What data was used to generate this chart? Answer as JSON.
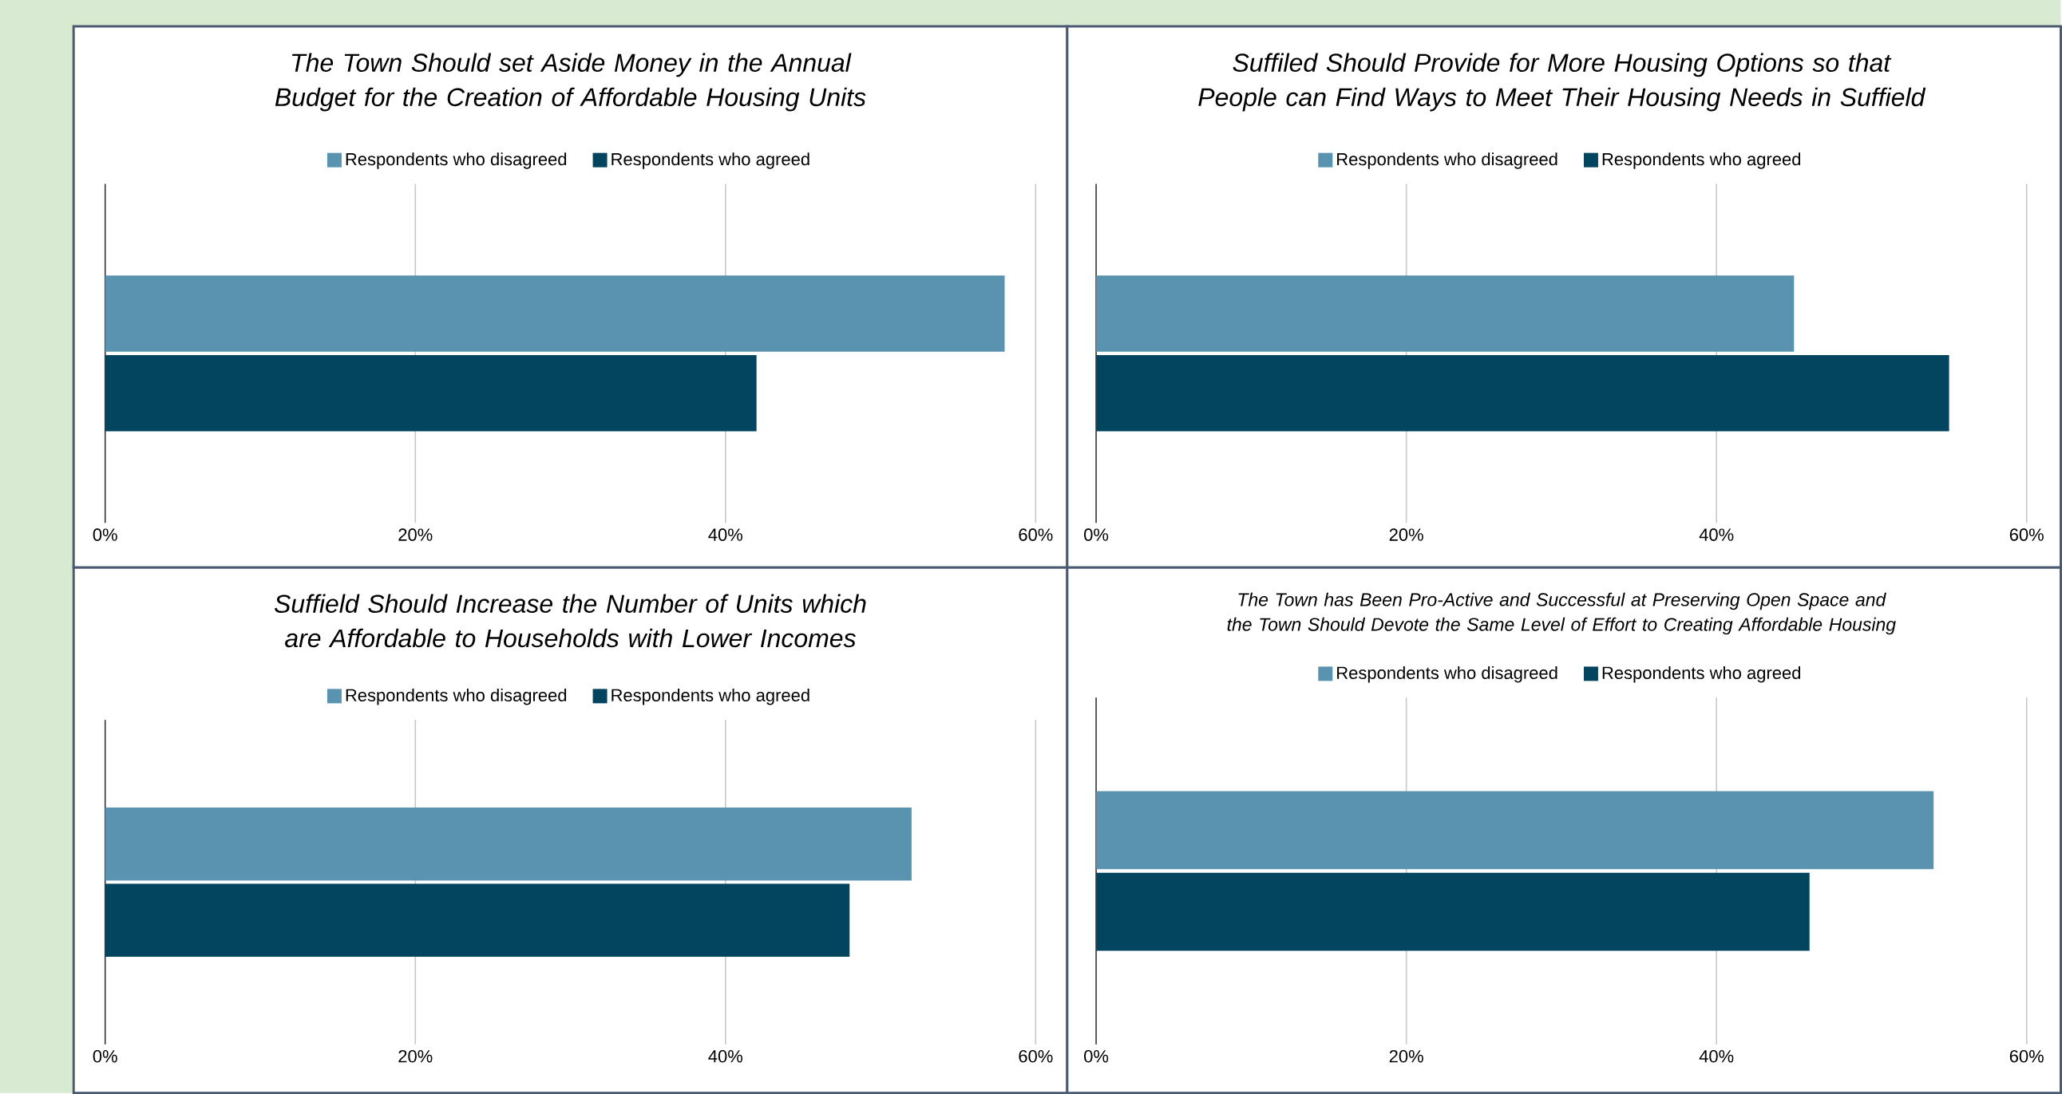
{
  "chart_data": [
    {
      "type": "bar",
      "orientation": "horizontal",
      "title": "The Town Should set Aside Money in the Annual Budget for the Creation of Affordable Housing Units",
      "categories": [
        null
      ],
      "series": [
        {
          "name": "Respondents who disagreed",
          "color": "#5a93b0",
          "values": [
            58
          ]
        },
        {
          "name": "Respondents who agreed",
          "color": "#03455f",
          "values": [
            42
          ]
        }
      ],
      "xlim": [
        0,
        60
      ],
      "xticks": [
        {
          "value": 0,
          "label": "0%"
        },
        {
          "value": 20,
          "label": "20%"
        },
        {
          "value": 40,
          "label": "40%"
        },
        {
          "value": 60,
          "label": "60%"
        }
      ],
      "grid": "x",
      "legend": "top",
      "tick_labels": "x"
    },
    {
      "type": "bar",
      "orientation": "horizontal",
      "title": "Suffiled Should Provide for More Housing Options so that People can Find Ways to Meet Their Housing Needs in Suffield",
      "categories": [
        null
      ],
      "series": [
        {
          "name": "Respondents who disagreed",
          "color": "#5a93b0",
          "values": [
            45
          ]
        },
        {
          "name": "Respondents who agreed",
          "color": "#03455f",
          "values": [
            55
          ]
        }
      ],
      "xlim": [
        0,
        60
      ],
      "xticks": [
        {
          "value": 0,
          "label": "0%"
        },
        {
          "value": 20,
          "label": "20%"
        },
        {
          "value": 40,
          "label": "40%"
        },
        {
          "value": 60,
          "label": "60%"
        }
      ],
      "grid": "x",
      "legend": "top",
      "tick_labels": "x"
    },
    {
      "type": "bar",
      "orientation": "horizontal",
      "title": "Suffield Should Increase the Number of Units which are Affordable to Households with Lower Incomes",
      "categories": [
        null
      ],
      "series": [
        {
          "name": "Respondents who disagreed",
          "color": "#5a93b0",
          "values": [
            52
          ]
        },
        {
          "name": "Respondents who agreed",
          "color": "#03455f",
          "values": [
            48
          ]
        }
      ],
      "xlim": [
        0,
        60
      ],
      "xticks": [
        {
          "value": 0,
          "label": "0%"
        },
        {
          "value": 20,
          "label": "20%"
        },
        {
          "value": 40,
          "label": "40%"
        },
        {
          "value": 60,
          "label": "60%"
        }
      ],
      "grid": "x",
      "legend": "top",
      "tick_labels": "x"
    },
    {
      "type": "bar",
      "orientation": "horizontal",
      "title": "The Town has Been Pro-Active and Successful at Preserving Open Space and the Town Should Devote the Same Level of Effort to Creating Affordable Housing",
      "categories": [
        null
      ],
      "series": [
        {
          "name": "Respondents who disagreed",
          "color": "#5a93b0",
          "values": [
            54
          ]
        },
        {
          "name": "Respondents who agreed",
          "color": "#03455f",
          "values": [
            46
          ]
        }
      ],
      "xlim": [
        0,
        60
      ],
      "xticks": [
        {
          "value": 0,
          "label": "0%"
        },
        {
          "value": 20,
          "label": "20%"
        },
        {
          "value": 40,
          "label": "40%"
        },
        {
          "value": 60,
          "label": "60%"
        }
      ],
      "grid": "x",
      "legend": "top",
      "tick_labels": "x"
    }
  ]
}
